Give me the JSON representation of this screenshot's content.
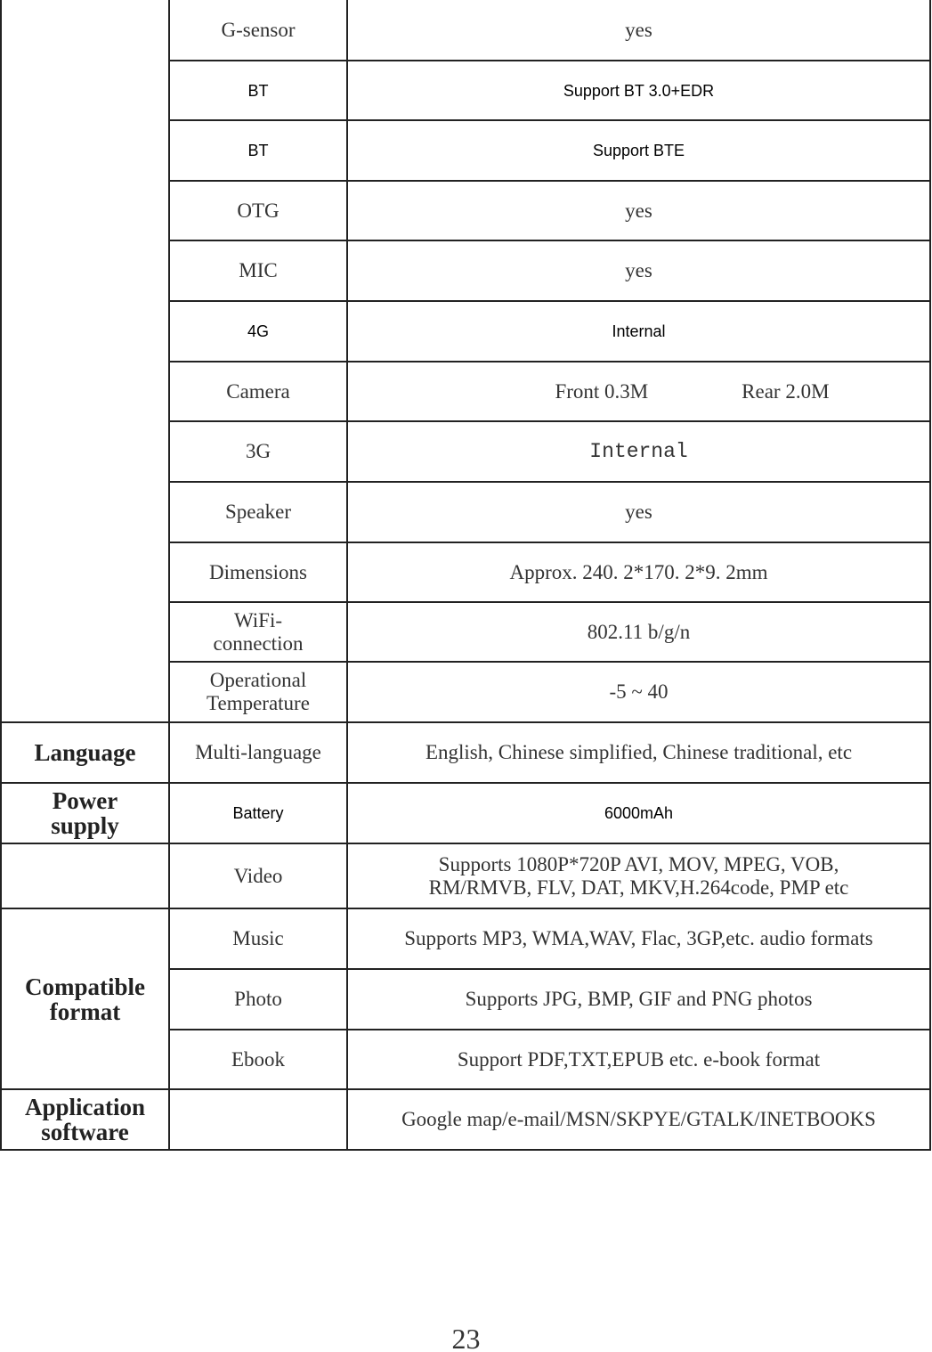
{
  "groups": [
    {
      "rows": [
        {
          "name": "G-sensor",
          "value": "yes"
        },
        {
          "name": "BT",
          "value": "Support BT 3.0+EDR"
        },
        {
          "name": "BT",
          "value": "Support BTE"
        },
        {
          "name": "OTG",
          "value": "yes"
        },
        {
          "name": "MIC",
          "value": "yes"
        },
        {
          "name": "4G",
          "value": "Internal"
        },
        {
          "name": "Camera",
          "value": [
            "Front 0.3M",
            "Rear 2.0M"
          ]
        },
        {
          "name": "3G",
          "value": "Internal"
        },
        {
          "name": "Speaker",
          "value": "yes"
        },
        {
          "name": "Dimensions",
          "value": "Approx. 240. 2*170. 2*9. 2mm"
        },
        {
          "name": "WiFi-\nconnection",
          "value": "802.11 b/g/n"
        },
        {
          "name": "Operational\nTemperature",
          "value": "-5 ~ 40"
        }
      ]
    },
    {
      "label": "Language",
      "rows": [
        {
          "name": "Multi-language",
          "value": "English, Chinese simplified, Chinese traditional, etc"
        }
      ]
    },
    {
      "label": "Power\nsupply",
      "rows": [
        {
          "name": "Battery",
          "value": "6000mAh"
        }
      ]
    },
    {
      "rows": [
        {
          "name": "Video",
          "value": "Supports 1080P*720P AVI, MOV, MPEG, VOB,\nRM/RMVB, FLV, DAT, MKV,H.264code, PMP etc"
        }
      ]
    },
    {
      "label": "Compatible\nformat",
      "rows": [
        {
          "name": "Music",
          "value": "Supports MP3, WMA,WAV, Flac, 3GP,etc. audio formats"
        },
        {
          "name": "Photo",
          "value": "Supports JPG, BMP, GIF and PNG photos"
        },
        {
          "name": "Ebook",
          "value": "Support PDF,TXT,EPUB etc. e-book format"
        }
      ]
    },
    {
      "label": "Application\nsoftware",
      "rows": [
        {
          "value": "Google map/e-mail/MSN/SKPYE/GTALK/INETBOOKS"
        }
      ]
    }
  ],
  "page_number": "23"
}
